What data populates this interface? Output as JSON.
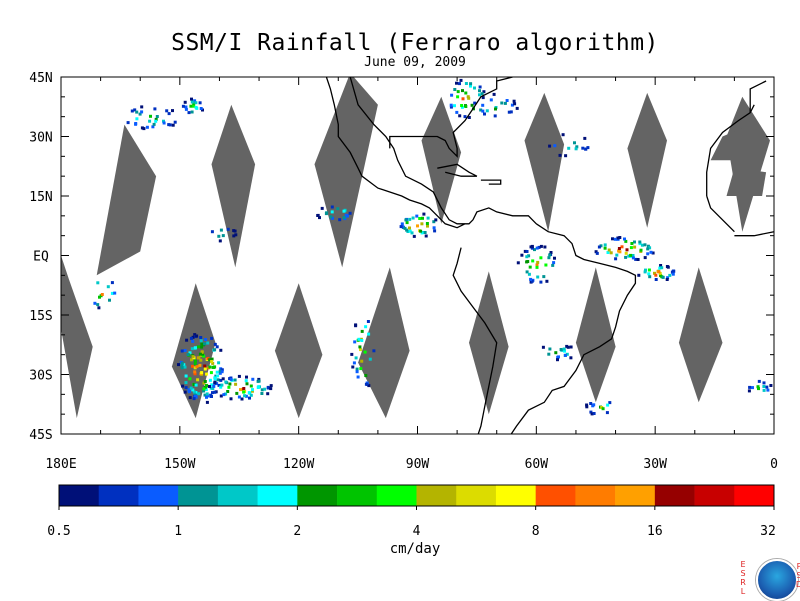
{
  "title": "SSM/I Rainfall (Ferraro algorithm)",
  "subtitle": "June 09, 2009",
  "map": {
    "lon_min": -180,
    "lon_max": 0,
    "lat_min": -45,
    "lat_max": 45,
    "lat_labels": [
      "45N",
      "30N",
      "15N",
      "EQ",
      "15S",
      "30S",
      "45S"
    ],
    "lat_values": [
      45,
      30,
      15,
      0,
      -15,
      -30,
      -45
    ],
    "lon_labels": [
      "180E",
      "150W",
      "120W",
      "90W",
      "60W",
      "30W",
      "0"
    ],
    "lon_values": [
      -180,
      -150,
      -120,
      -90,
      -60,
      -30,
      0
    ],
    "missing_color": "#646464",
    "coast_color": "#000000",
    "missing_swaths": [
      [
        [
          -171,
          -5
        ],
        [
          -164,
          33
        ],
        [
          -156,
          20
        ],
        [
          -160,
          1
        ]
      ],
      [
        [
          -187,
          21
        ],
        [
          -176,
          -41
        ],
        [
          -172,
          -23
        ],
        [
          -178,
          -6
        ]
      ],
      [
        [
          -137,
          38
        ],
        [
          -131,
          23
        ],
        [
          -136,
          -3
        ],
        [
          -142,
          23
        ]
      ],
      [
        [
          -146,
          -7
        ],
        [
          -141,
          -22
        ],
        [
          -146,
          -41
        ],
        [
          -152,
          -28
        ]
      ],
      [
        [
          -107,
          46
        ],
        [
          -100,
          38
        ],
        [
          -109,
          -3
        ],
        [
          -116,
          23
        ]
      ],
      [
        [
          -120,
          -7
        ],
        [
          -114,
          -25
        ],
        [
          -120,
          -41
        ],
        [
          -126,
          -24
        ]
      ],
      [
        [
          -84,
          40
        ],
        [
          -79,
          26
        ],
        [
          -84,
          8
        ],
        [
          -89,
          29
        ]
      ],
      [
        [
          -97,
          -3
        ],
        [
          -92,
          -24
        ],
        [
          -98,
          -41
        ],
        [
          -105,
          -27
        ]
      ],
      [
        [
          -58,
          41
        ],
        [
          -53,
          28
        ],
        [
          -57,
          6
        ],
        [
          -63,
          29
        ]
      ],
      [
        [
          -72,
          -4
        ],
        [
          -67,
          -23
        ],
        [
          -72,
          -40
        ],
        [
          -77,
          -22
        ]
      ],
      [
        [
          -32,
          41
        ],
        [
          -27,
          29
        ],
        [
          -32,
          7
        ],
        [
          -37,
          27
        ]
      ],
      [
        [
          -45,
          -3
        ],
        [
          -40,
          -23
        ],
        [
          -45,
          -37
        ],
        [
          -50,
          -22
        ]
      ],
      [
        [
          -8,
          40
        ],
        [
          -1,
          29
        ],
        [
          -8,
          6
        ],
        [
          -12,
          30
        ]
      ],
      [
        [
          -19,
          -3
        ],
        [
          -13,
          -22
        ],
        [
          -19,
          -37
        ],
        [
          -24,
          -22
        ]
      ]
    ],
    "coastline_north_america": [
      [
        -107,
        45
      ],
      [
        -105,
        38
      ],
      [
        -101,
        33
      ],
      [
        -98,
        30
      ],
      [
        -96,
        27
      ],
      [
        -95,
        24
      ],
      [
        -93,
        20
      ],
      [
        -89,
        18
      ],
      [
        -86,
        16
      ],
      [
        -84,
        12
      ],
      [
        -82,
        9
      ],
      [
        -80,
        8
      ],
      [
        -77,
        8
      ],
      [
        -76,
        9
      ],
      [
        -75,
        11
      ],
      [
        -72,
        12
      ],
      [
        -70,
        11
      ],
      [
        -66,
        10
      ],
      [
        -62,
        10
      ],
      [
        -60,
        8
      ]
    ],
    "coastline_pacific_north": [
      [
        -113,
        45
      ],
      [
        -112,
        42
      ],
      [
        -111,
        38
      ],
      [
        -110,
        33
      ],
      [
        -110,
        30
      ],
      [
        -107,
        26
      ],
      [
        -105,
        22
      ],
      [
        -104,
        20
      ],
      [
        -100,
        17
      ],
      [
        -97,
        16
      ],
      [
        -94,
        15
      ],
      [
        -92,
        14
      ],
      [
        -89,
        13
      ],
      [
        -87,
        12
      ],
      [
        -85,
        10
      ],
      [
        -83,
        8
      ],
      [
        -80,
        7
      ],
      [
        -78,
        8
      ]
    ],
    "coastline_south_america": [
      [
        -79,
        2
      ],
      [
        -80,
        -2
      ],
      [
        -81,
        -5
      ],
      [
        -79,
        -9
      ],
      [
        -76,
        -13
      ],
      [
        -73,
        -17
      ],
      [
        -70,
        -22
      ],
      [
        -71,
        -28
      ],
      [
        -72,
        -33
      ],
      [
        -73,
        -38
      ],
      [
        -74,
        -43
      ],
      [
        -75,
        -46
      ],
      [
        -67,
        -46
      ],
      [
        -65,
        -43
      ],
      [
        -62,
        -39
      ],
      [
        -58,
        -37
      ],
      [
        -56,
        -34
      ],
      [
        -53,
        -33
      ],
      [
        -50,
        -29
      ],
      [
        -48,
        -25
      ],
      [
        -44,
        -23
      ],
      [
        -41,
        -21
      ],
      [
        -40,
        -18
      ],
      [
        -39,
        -14
      ],
      [
        -37,
        -10
      ],
      [
        -35,
        -7
      ],
      [
        -35,
        -5
      ],
      [
        -37,
        -4
      ],
      [
        -40,
        -3
      ],
      [
        -44,
        -2
      ],
      [
        -48,
        -1
      ],
      [
        -50,
        0
      ],
      [
        -51,
        3
      ],
      [
        -53,
        5
      ],
      [
        -57,
        6
      ],
      [
        -60,
        8
      ]
    ],
    "coastline_gulf": [
      [
        -97,
        27
      ],
      [
        -97,
        30
      ],
      [
        -93,
        30
      ],
      [
        -89,
        30
      ],
      [
        -85,
        30
      ],
      [
        -83,
        29
      ],
      [
        -82,
        27
      ],
      [
        -80,
        25
      ],
      [
        -80,
        27
      ],
      [
        -81,
        31
      ],
      [
        -78,
        34
      ],
      [
        -76,
        37
      ],
      [
        -74,
        40
      ],
      [
        -70,
        42
      ],
      [
        -70,
        44
      ],
      [
        -66,
        45
      ]
    ],
    "islands": [
      [
        [
          -85,
          22
        ],
        [
          -80,
          23
        ],
        [
          -77,
          21
        ],
        [
          -75,
          20
        ],
        [
          -79,
          20
        ],
        [
          -83,
          21
        ]
      ],
      [
        [
          -74,
          19
        ],
        [
          -69,
          19
        ],
        [
          -69,
          18
        ],
        [
          -72,
          18
        ]
      ],
      [
        [
          -17,
          15
        ],
        [
          -17,
          21
        ],
        [
          -16,
          27
        ],
        [
          -13,
          31
        ],
        [
          -9,
          34
        ],
        [
          -6,
          36
        ],
        [
          -5,
          38
        ]
      ],
      [
        [
          -6,
          36
        ],
        [
          -6,
          42
        ],
        [
          -2,
          44
        ]
      ],
      [
        [
          -10,
          5
        ],
        [
          -5,
          5
        ],
        [
          0,
          6
        ]
      ],
      [
        [
          -17,
          15
        ],
        [
          -16,
          12
        ],
        [
          -13,
          9
        ],
        [
          -10,
          6
        ]
      ]
    ],
    "africa_land_patches": [
      [
        [
          -16,
          24
        ],
        [
          -4,
          24
        ],
        [
          -3,
          30
        ],
        [
          -6,
          33
        ],
        [
          -13,
          30
        ]
      ],
      [
        [
          -12,
          15
        ],
        [
          -3,
          15
        ],
        [
          -2,
          21
        ],
        [
          -10,
          22
        ]
      ]
    ]
  },
  "legend": {
    "colors": [
      "#001078",
      "#0030c0",
      "#0a5cff",
      "#009494",
      "#00c8c8",
      "#00ffff",
      "#009600",
      "#00c400",
      "#00ff00",
      "#b4b400",
      "#dcdc00",
      "#ffff00",
      "#ff5000",
      "#ff7c00",
      "#ffa000",
      "#960000",
      "#c80000",
      "#ff0000"
    ],
    "tick_labels": [
      "0.5",
      "1",
      "2",
      "4",
      "8",
      "16",
      "32"
    ],
    "unit": "cm/day"
  },
  "rain_clusters": [
    {
      "lon": -145,
      "lat": -28,
      "n": 140,
      "rx": 6,
      "ry": 9,
      "maxlvl": 17
    },
    {
      "lon": -135,
      "lat": -33,
      "n": 60,
      "rx": 8,
      "ry": 3,
      "maxlvl": 15
    },
    {
      "lon": -158,
      "lat": 35,
      "n": 30,
      "rx": 8,
      "ry": 3,
      "maxlvl": 8
    },
    {
      "lon": -147,
      "lat": 38,
      "n": 18,
      "rx": 3,
      "ry": 2,
      "maxlvl": 10
    },
    {
      "lon": -78,
      "lat": 40,
      "n": 35,
      "rx": 5,
      "ry": 5,
      "maxlvl": 16
    },
    {
      "lon": -71,
      "lat": 38,
      "n": 20,
      "rx": 6,
      "ry": 3,
      "maxlvl": 9
    },
    {
      "lon": -90,
      "lat": 8,
      "n": 35,
      "rx": 5,
      "ry": 3,
      "maxlvl": 17
    },
    {
      "lon": -111,
      "lat": 11,
      "n": 20,
      "rx": 5,
      "ry": 2,
      "maxlvl": 10
    },
    {
      "lon": -38,
      "lat": 2,
      "n": 50,
      "rx": 8,
      "ry": 3,
      "maxlvl": 17
    },
    {
      "lon": -30,
      "lat": -4,
      "n": 30,
      "rx": 5,
      "ry": 2,
      "maxlvl": 15
    },
    {
      "lon": -60,
      "lat": -2,
      "n": 40,
      "rx": 5,
      "ry": 5,
      "maxlvl": 14
    },
    {
      "lon": -104,
      "lat": -24,
      "n": 30,
      "rx": 3,
      "ry": 10,
      "maxlvl": 14
    },
    {
      "lon": -55,
      "lat": -24,
      "n": 18,
      "rx": 5,
      "ry": 2,
      "maxlvl": 8
    },
    {
      "lon": -170,
      "lat": -9,
      "n": 12,
      "rx": 4,
      "ry": 4,
      "maxlvl": 14
    },
    {
      "lon": -140,
      "lat": 6,
      "n": 10,
      "rx": 4,
      "ry": 2,
      "maxlvl": 6
    },
    {
      "lon": -44,
      "lat": -38,
      "n": 14,
      "rx": 4,
      "ry": 2,
      "maxlvl": 10
    },
    {
      "lon": -52,
      "lat": 28,
      "n": 14,
      "rx": 6,
      "ry": 3,
      "maxlvl": 7
    },
    {
      "lon": -4,
      "lat": -33,
      "n": 12,
      "rx": 3,
      "ry": 2,
      "maxlvl": 8
    }
  ]
}
